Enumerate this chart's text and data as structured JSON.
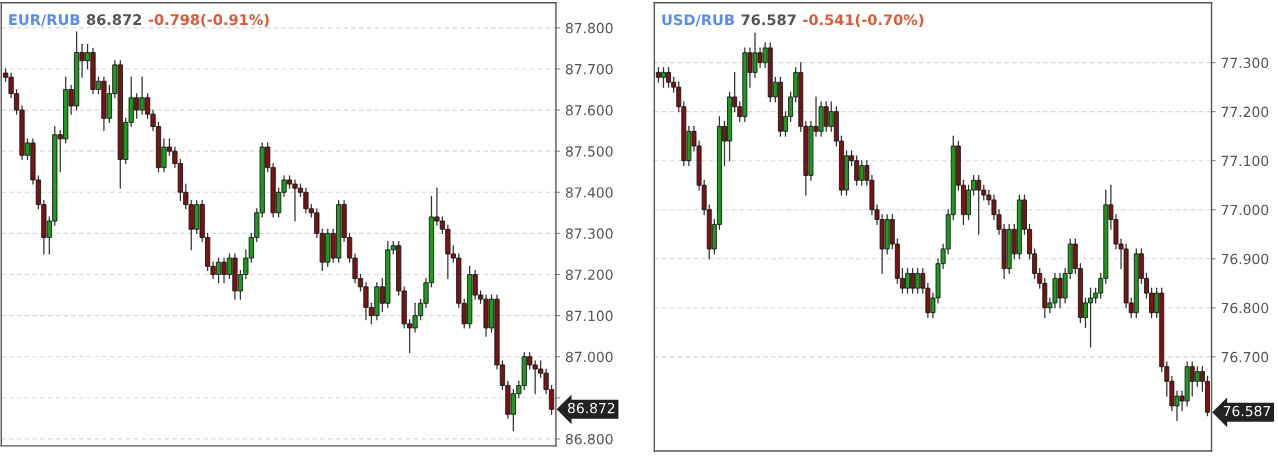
{
  "chart_data": [
    {
      "type": "candlestick",
      "title": "EUR/RUB",
      "annotations": [
        "86.872",
        "-0.798(-0.91%)",
        "86.872"
      ],
      "categories": [
        null,
        null,
        null,
        null,
        null,
        null,
        null,
        null,
        null,
        null,
        null,
        null,
        null,
        null,
        null,
        null,
        null,
        null,
        null,
        null,
        null,
        null,
        null,
        null,
        null,
        null,
        null,
        null,
        null,
        null,
        null,
        null,
        null,
        null,
        null,
        null,
        null,
        null,
        null,
        null,
        null,
        null,
        null,
        null,
        null,
        null,
        null,
        null,
        null,
        null,
        null,
        null,
        null,
        null,
        null,
        null,
        null,
        null,
        null,
        null,
        null,
        null,
        null,
        null,
        null,
        null,
        null,
        null,
        null,
        null,
        null,
        null,
        null,
        null,
        null,
        null,
        null,
        null,
        null,
        null,
        null,
        null,
        null,
        null,
        null,
        null,
        null,
        null,
        null,
        null,
        null,
        null,
        null,
        null,
        null,
        null,
        null,
        null,
        null,
        null,
        null
      ],
      "ohlc": [
        [
          87.69,
          87.7,
          87.67,
          87.68
        ],
        [
          87.68,
          87.69,
          87.63,
          87.64
        ],
        [
          87.64,
          87.65,
          87.59,
          87.6
        ],
        [
          87.6,
          87.61,
          87.48,
          87.49
        ],
        [
          87.49,
          87.53,
          87.48,
          87.52
        ],
        [
          87.52,
          87.53,
          87.42,
          87.43
        ],
        [
          87.43,
          87.44,
          87.36,
          87.37
        ],
        [
          87.37,
          87.38,
          87.25,
          87.29
        ],
        [
          87.29,
          87.34,
          87.25,
          87.33
        ],
        [
          87.33,
          87.56,
          87.32,
          87.54
        ],
        [
          87.54,
          87.55,
          87.45,
          87.53
        ],
        [
          87.53,
          87.68,
          87.52,
          87.65
        ],
        [
          87.65,
          87.66,
          87.59,
          87.61
        ],
        [
          87.61,
          87.79,
          87.6,
          87.74
        ],
        [
          87.74,
          87.76,
          87.68,
          87.72
        ],
        [
          87.72,
          87.76,
          87.7,
          87.74
        ],
        [
          87.74,
          87.75,
          87.64,
          87.65
        ],
        [
          87.65,
          87.68,
          87.64,
          87.67
        ],
        [
          87.67,
          87.68,
          87.55,
          87.58
        ],
        [
          87.58,
          87.66,
          87.57,
          87.64
        ],
        [
          87.64,
          87.72,
          87.63,
          87.71
        ],
        [
          87.71,
          87.72,
          87.41,
          87.48
        ],
        [
          87.48,
          87.58,
          87.47,
          87.57
        ],
        [
          87.57,
          87.68,
          87.56,
          87.63
        ],
        [
          87.63,
          87.64,
          87.58,
          87.6
        ],
        [
          87.6,
          87.68,
          87.59,
          87.63
        ],
        [
          87.63,
          87.64,
          87.58,
          87.59
        ],
        [
          87.59,
          87.6,
          87.55,
          87.56
        ],
        [
          87.56,
          87.57,
          87.45,
          87.46
        ],
        [
          87.46,
          87.53,
          87.45,
          87.51
        ],
        [
          87.51,
          87.53,
          87.49,
          87.5
        ],
        [
          87.5,
          87.51,
          87.46,
          87.47
        ],
        [
          87.47,
          87.48,
          87.38,
          87.4
        ],
        [
          87.4,
          87.42,
          87.36,
          87.37
        ],
        [
          87.37,
          87.38,
          87.26,
          87.31
        ],
        [
          87.31,
          87.38,
          87.3,
          87.37
        ],
        [
          87.37,
          87.38,
          87.28,
          87.29
        ],
        [
          87.29,
          87.3,
          87.21,
          87.22
        ],
        [
          87.22,
          87.23,
          87.19,
          87.2
        ],
        [
          87.2,
          87.24,
          87.18,
          87.23
        ],
        [
          87.23,
          87.24,
          87.18,
          87.2
        ],
        [
          87.2,
          87.25,
          87.19,
          87.24
        ],
        [
          87.24,
          87.25,
          87.14,
          87.16
        ],
        [
          87.16,
          87.21,
          87.14,
          87.2
        ],
        [
          87.2,
          87.26,
          87.19,
          87.24
        ],
        [
          87.24,
          87.3,
          87.23,
          87.29
        ],
        [
          87.29,
          87.36,
          87.28,
          87.35
        ],
        [
          87.35,
          87.52,
          87.34,
          87.51
        ],
        [
          87.51,
          87.52,
          87.45,
          87.46
        ],
        [
          87.46,
          87.47,
          87.34,
          87.35
        ],
        [
          87.35,
          87.41,
          87.34,
          87.4
        ],
        [
          87.4,
          87.44,
          87.39,
          87.43
        ],
        [
          87.43,
          87.44,
          87.41,
          87.42
        ],
        [
          87.42,
          87.43,
          87.33,
          87.41
        ],
        [
          87.41,
          87.42,
          87.39,
          87.4
        ],
        [
          87.4,
          87.41,
          87.35,
          87.36
        ],
        [
          87.36,
          87.37,
          87.34,
          87.35
        ],
        [
          87.35,
          87.36,
          87.29,
          87.3
        ],
        [
          87.3,
          87.31,
          87.21,
          87.23
        ],
        [
          87.23,
          87.31,
          87.22,
          87.3
        ],
        [
          87.3,
          87.31,
          87.23,
          87.24
        ],
        [
          87.24,
          87.38,
          87.23,
          87.37
        ],
        [
          87.37,
          87.38,
          87.28,
          87.29
        ],
        [
          87.29,
          87.3,
          87.23,
          87.24
        ],
        [
          87.24,
          87.25,
          87.18,
          87.19
        ],
        [
          87.19,
          87.2,
          87.16,
          87.17
        ],
        [
          87.17,
          87.18,
          87.09,
          87.12
        ],
        [
          87.12,
          87.13,
          87.08,
          87.1
        ],
        [
          87.1,
          87.18,
          87.09,
          87.17
        ],
        [
          87.17,
          87.19,
          87.11,
          87.13
        ],
        [
          87.13,
          87.28,
          87.12,
          87.26
        ],
        [
          87.26,
          87.28,
          87.25,
          87.27
        ],
        [
          87.27,
          87.28,
          87.15,
          87.16
        ],
        [
          87.16,
          87.17,
          87.07,
          87.08
        ],
        [
          87.08,
          87.09,
          87.01,
          87.07
        ],
        [
          87.07,
          87.13,
          87.06,
          87.1
        ],
        [
          87.1,
          87.14,
          87.09,
          87.13
        ],
        [
          87.13,
          87.19,
          87.12,
          87.18
        ],
        [
          87.18,
          87.39,
          87.17,
          87.34
        ],
        [
          87.34,
          87.41,
          87.32,
          87.33
        ],
        [
          87.33,
          87.34,
          87.3,
          87.31
        ],
        [
          87.31,
          87.32,
          87.19,
          87.25
        ],
        [
          87.25,
          87.27,
          87.23,
          87.24
        ],
        [
          87.24,
          87.25,
          87.12,
          87.13
        ],
        [
          87.13,
          87.14,
          87.07,
          87.08
        ],
        [
          87.08,
          87.22,
          87.07,
          87.2
        ],
        [
          87.2,
          87.21,
          87.14,
          87.15
        ],
        [
          87.15,
          87.16,
          87.13,
          87.14
        ],
        [
          87.14,
          87.15,
          87.05,
          87.07
        ],
        [
          87.07,
          87.15,
          87.06,
          87.14
        ],
        [
          87.14,
          87.15,
          86.97,
          86.98
        ],
        [
          86.98,
          86.99,
          86.92,
          86.93
        ],
        [
          86.93,
          86.94,
          86.85,
          86.86
        ],
        [
          86.86,
          86.92,
          86.82,
          86.91
        ],
        [
          86.91,
          86.94,
          86.9,
          86.93
        ],
        [
          86.93,
          87.01,
          86.92,
          87.0
        ],
        [
          87.0,
          87.01,
          86.97,
          86.98
        ],
        [
          86.98,
          86.99,
          86.91,
          86.97
        ],
        [
          86.97,
          86.99,
          86.95,
          86.96
        ],
        [
          86.96,
          86.97,
          86.91,
          86.92
        ],
        [
          86.92,
          86.93,
          86.86,
          86.872
        ]
      ],
      "ylim": [
        86.783,
        87.861
      ],
      "yticks": [
        {
          "value": 86.8,
          "label": "86.800"
        },
        {
          "value": 86.9,
          "label": null
        },
        {
          "value": 87.0,
          "label": "87.000"
        },
        {
          "value": 87.1,
          "label": "87.100"
        },
        {
          "value": 87.2,
          "label": "87.200"
        },
        {
          "value": 87.3,
          "label": "87.300"
        },
        {
          "value": 87.4,
          "label": "87.400"
        },
        {
          "value": 87.5,
          "label": "87.500"
        },
        {
          "value": 87.6,
          "label": "87.600"
        },
        {
          "value": 87.7,
          "label": "87.700"
        },
        {
          "value": 87.8,
          "label": "87.800"
        }
      ],
      "tick_labels": "y",
      "grid": "y"
    },
    {
      "type": "candlestick",
      "title": "USD/RUB",
      "annotations": [
        "76.587",
        "-0.541(-0.70%)",
        "76.587"
      ],
      "categories": [
        null,
        null,
        null,
        null,
        null,
        null,
        null,
        null,
        null,
        null,
        null,
        null,
        null,
        null,
        null,
        null,
        null,
        null,
        null,
        null,
        null,
        null,
        null,
        null,
        null,
        null,
        null,
        null,
        null,
        null,
        null,
        null,
        null,
        null,
        null,
        null,
        null,
        null,
        null,
        null,
        null,
        null,
        null,
        null,
        null,
        null,
        null,
        null,
        null,
        null,
        null,
        null,
        null,
        null,
        null,
        null,
        null,
        null,
        null,
        null,
        null,
        null,
        null,
        null,
        null,
        null,
        null,
        null,
        null,
        null,
        null,
        null,
        null,
        null,
        null,
        null,
        null,
        null,
        null,
        null,
        null,
        null,
        null,
        null,
        null,
        null,
        null,
        null,
        null,
        null,
        null,
        null,
        null,
        null,
        null,
        null,
        null,
        null,
        null,
        null,
        null,
        null,
        null,
        null,
        null,
        null,
        null,
        null,
        null
      ],
      "ohlc": [
        [
          77.28,
          77.29,
          77.26,
          77.27
        ],
        [
          77.27,
          77.29,
          77.25,
          77.28
        ],
        [
          77.28,
          77.29,
          77.25,
          77.26
        ],
        [
          77.26,
          77.27,
          77.24,
          77.25
        ],
        [
          77.25,
          77.26,
          77.2,
          77.21
        ],
        [
          77.21,
          77.22,
          77.09,
          77.1
        ],
        [
          77.1,
          77.17,
          77.09,
          77.16
        ],
        [
          77.16,
          77.17,
          77.12,
          77.13
        ],
        [
          77.13,
          77.14,
          77.04,
          77.05
        ],
        [
          77.05,
          77.06,
          76.99,
          77.0
        ],
        [
          77.0,
          77.01,
          76.9,
          76.92
        ],
        [
          76.92,
          76.98,
          76.91,
          76.97
        ],
        [
          76.97,
          77.19,
          76.96,
          77.17
        ],
        [
          77.17,
          77.18,
          77.09,
          77.14
        ],
        [
          77.14,
          77.24,
          77.1,
          77.23
        ],
        [
          77.23,
          77.28,
          77.2,
          77.21
        ],
        [
          77.21,
          77.22,
          77.18,
          77.19
        ],
        [
          77.19,
          77.33,
          77.18,
          77.32
        ],
        [
          77.32,
          77.33,
          77.25,
          77.28
        ],
        [
          77.28,
          77.36,
          77.27,
          77.32
        ],
        [
          77.32,
          77.33,
          77.29,
          77.3
        ],
        [
          77.3,
          77.34,
          77.29,
          77.33
        ],
        [
          77.33,
          77.34,
          77.22,
          77.23
        ],
        [
          77.23,
          77.27,
          77.22,
          77.26
        ],
        [
          77.26,
          77.27,
          77.15,
          77.16
        ],
        [
          77.16,
          77.2,
          77.15,
          77.19
        ],
        [
          77.19,
          77.24,
          77.18,
          77.23
        ],
        [
          77.23,
          77.29,
          77.22,
          77.28
        ],
        [
          77.28,
          77.3,
          77.16,
          77.17
        ],
        [
          77.17,
          77.18,
          77.03,
          77.07
        ],
        [
          77.07,
          77.18,
          77.06,
          77.17
        ],
        [
          77.17,
          77.23,
          77.15,
          77.16
        ],
        [
          77.16,
          77.22,
          77.15,
          77.21
        ],
        [
          77.21,
          77.22,
          77.16,
          77.17
        ],
        [
          77.17,
          77.22,
          77.16,
          77.2
        ],
        [
          77.2,
          77.21,
          77.13,
          77.14
        ],
        [
          77.14,
          77.15,
          77.03,
          77.04
        ],
        [
          77.04,
          77.12,
          77.03,
          77.11
        ],
        [
          77.11,
          77.12,
          77.09,
          77.1
        ],
        [
          77.1,
          77.11,
          77.05,
          77.06
        ],
        [
          77.06,
          77.1,
          77.05,
          77.09
        ],
        [
          77.09,
          77.1,
          77.05,
          77.06
        ],
        [
          77.06,
          77.07,
          76.99,
          77.0
        ],
        [
          77.0,
          77.01,
          76.97,
          76.98
        ],
        [
          76.98,
          76.99,
          76.87,
          76.92
        ],
        [
          76.92,
          76.99,
          76.91,
          76.98
        ],
        [
          76.98,
          76.99,
          76.92,
          76.93
        ],
        [
          76.93,
          76.94,
          76.85,
          76.86
        ],
        [
          76.86,
          76.88,
          76.83,
          76.84
        ],
        [
          76.84,
          76.88,
          76.83,
          76.87
        ],
        [
          76.87,
          76.88,
          76.83,
          76.84
        ],
        [
          76.84,
          76.88,
          76.83,
          76.87
        ],
        [
          76.87,
          76.88,
          76.83,
          76.84
        ],
        [
          76.84,
          76.85,
          76.78,
          76.79
        ],
        [
          76.79,
          76.83,
          76.78,
          76.82
        ],
        [
          76.82,
          76.9,
          76.81,
          76.89
        ],
        [
          76.89,
          76.93,
          76.88,
          76.92
        ],
        [
          76.92,
          77.0,
          76.91,
          76.99
        ],
        [
          76.99,
          77.15,
          76.98,
          77.13
        ],
        [
          77.13,
          77.14,
          77.04,
          77.05
        ],
        [
          77.05,
          77.06,
          76.97,
          76.99
        ],
        [
          76.99,
          77.05,
          76.98,
          77.04
        ],
        [
          77.04,
          77.07,
          77.03,
          77.06
        ],
        [
          77.06,
          77.07,
          76.95,
          77.04
        ],
        [
          77.04,
          77.05,
          77.02,
          77.03
        ],
        [
          77.03,
          77.04,
          77.01,
          77.02
        ],
        [
          77.02,
          77.03,
          76.98,
          76.99
        ],
        [
          76.99,
          77.0,
          76.95,
          76.96
        ],
        [
          76.96,
          76.97,
          76.86,
          76.88
        ],
        [
          76.88,
          76.97,
          76.87,
          76.96
        ],
        [
          76.96,
          76.97,
          76.9,
          76.91
        ],
        [
          76.91,
          77.03,
          76.9,
          77.02
        ],
        [
          77.02,
          77.03,
          76.95,
          76.96
        ],
        [
          76.96,
          76.97,
          76.9,
          76.91
        ],
        [
          76.91,
          76.92,
          76.86,
          76.87
        ],
        [
          76.87,
          76.88,
          76.84,
          76.85
        ],
        [
          76.85,
          76.86,
          76.78,
          76.8
        ],
        [
          76.8,
          76.82,
          76.79,
          76.81
        ],
        [
          76.81,
          76.87,
          76.8,
          76.86
        ],
        [
          76.86,
          76.87,
          76.8,
          76.82
        ],
        [
          76.82,
          76.88,
          76.81,
          76.87
        ],
        [
          76.87,
          76.94,
          76.86,
          76.93
        ],
        [
          76.93,
          76.94,
          76.87,
          76.88
        ],
        [
          76.88,
          76.89,
          76.77,
          76.78
        ],
        [
          76.78,
          76.82,
          76.76,
          76.81
        ],
        [
          76.81,
          76.84,
          76.72,
          76.82
        ],
        [
          76.82,
          76.84,
          76.81,
          76.83
        ],
        [
          76.83,
          76.87,
          76.82,
          76.86
        ],
        [
          76.86,
          77.04,
          76.85,
          77.01
        ],
        [
          77.01,
          77.05,
          76.96,
          76.98
        ],
        [
          76.98,
          76.99,
          76.92,
          76.93
        ],
        [
          76.93,
          76.94,
          76.88,
          76.92
        ],
        [
          76.92,
          76.93,
          76.8,
          76.81
        ],
        [
          76.81,
          76.82,
          76.78,
          76.79
        ],
        [
          76.79,
          76.92,
          76.78,
          76.91
        ],
        [
          76.91,
          76.92,
          76.85,
          76.86
        ],
        [
          76.86,
          76.87,
          76.82,
          76.83
        ],
        [
          76.83,
          76.84,
          76.78,
          76.79
        ],
        [
          76.79,
          76.84,
          76.78,
          76.83
        ],
        [
          76.83,
          76.84,
          76.67,
          76.68
        ],
        [
          76.68,
          76.69,
          76.62,
          76.65
        ],
        [
          76.65,
          76.66,
          76.59,
          76.6
        ],
        [
          76.6,
          76.63,
          76.57,
          76.62
        ],
        [
          76.62,
          76.63,
          76.59,
          76.61
        ],
        [
          76.61,
          76.69,
          76.6,
          76.68
        ],
        [
          76.68,
          76.69,
          76.62,
          76.65
        ],
        [
          76.65,
          76.68,
          76.64,
          76.67
        ],
        [
          76.67,
          76.68,
          76.63,
          76.65
        ],
        [
          76.65,
          76.66,
          76.58,
          76.587
        ]
      ],
      "ylim": [
        76.508,
        77.422
      ],
      "yticks": [
        {
          "value": 76.7,
          "label": "76.700"
        },
        {
          "value": 76.8,
          "label": "76.800"
        },
        {
          "value": 76.9,
          "label": "76.900"
        },
        {
          "value": 77.0,
          "label": "77.000"
        },
        {
          "value": 77.1,
          "label": "77.100"
        },
        {
          "value": 77.2,
          "label": "77.200"
        },
        {
          "value": 77.3,
          "label": "77.300"
        }
      ],
      "tick_labels": "y",
      "grid": "y"
    }
  ]
}
